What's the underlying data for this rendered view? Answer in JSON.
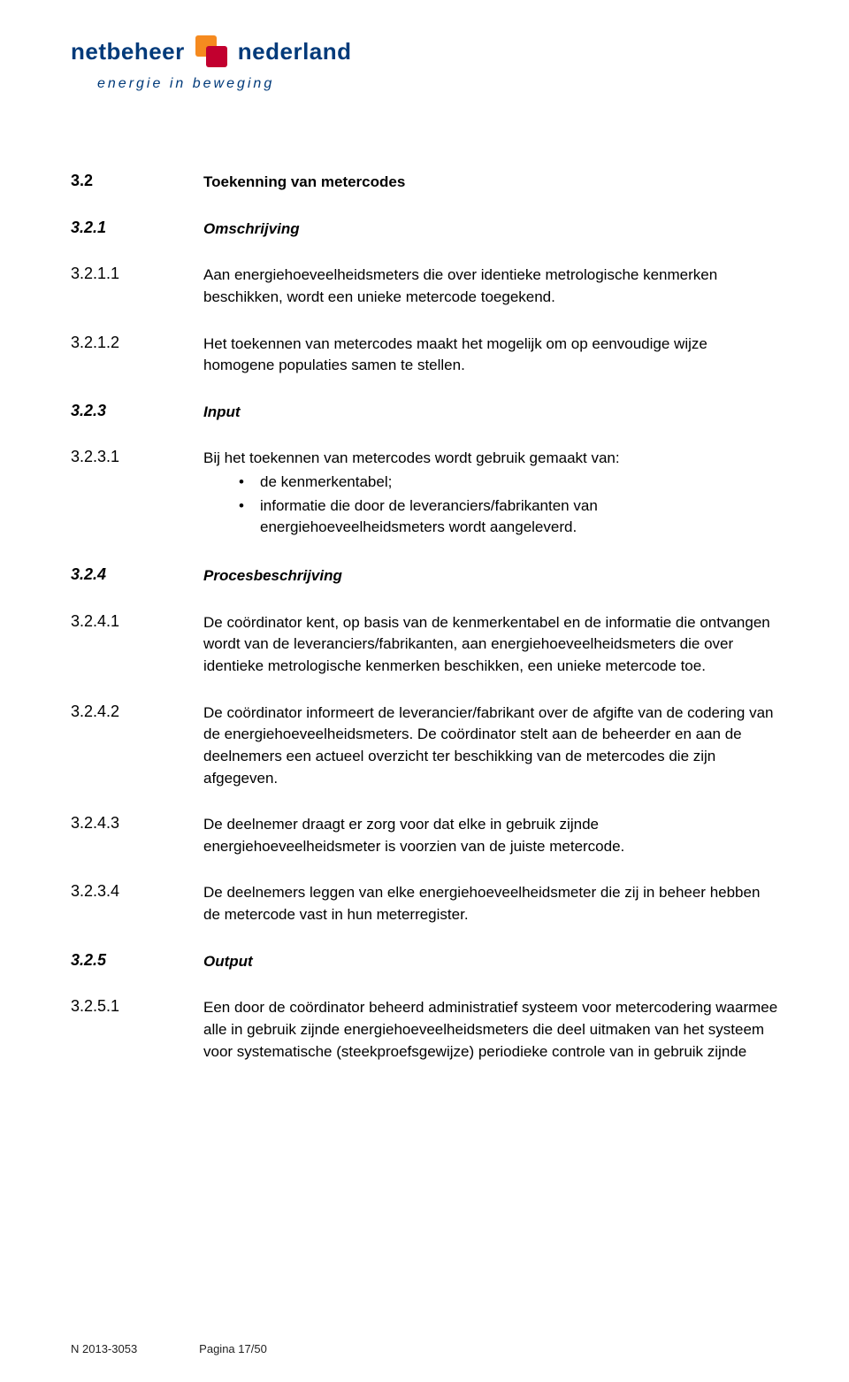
{
  "logo": {
    "word1": "netbeheer",
    "word2": "nederland",
    "tagline": "energie in beweging"
  },
  "sections": [
    {
      "num": "3.2",
      "title": "Toekenning van metercodes",
      "style": "bold"
    },
    {
      "num": "3.2.1",
      "title": "Omschrijving",
      "style": "bolditalic"
    },
    {
      "num": "3.2.1.1",
      "text": "Aan energiehoeveelheidsmeters die over identieke metrologische kenmerken beschikken, wordt een unieke metercode toegekend."
    },
    {
      "num": "3.2.1.2",
      "text": "Het toekennen van metercodes maakt het mogelijk om op eenvoudige wijze homogene populaties samen te stellen."
    },
    {
      "num": "3.2.3",
      "title": "Input",
      "style": "bolditalic"
    },
    {
      "num": "3.2.3.1",
      "text": "Bij het toekennen van metercodes wordt gebruik gemaakt van:",
      "bullets": [
        "de kenmerkentabel;",
        "informatie die door de leveranciers/fabrikanten van energiehoeveelheidsmeters wordt aangeleverd."
      ]
    },
    {
      "num": "3.2.4",
      "title": "Procesbeschrijving",
      "style": "bolditalic"
    },
    {
      "num": "3.2.4.1",
      "text": "De coördinator kent, op basis van de kenmerkentabel en de informatie die ontvangen wordt van de leveranciers/fabrikanten, aan energiehoeveelheidsmeters die over identieke metrologische kenmerken beschikken, een unieke metercode toe."
    },
    {
      "num": "3.2.4.2",
      "text": " De coördinator informeert de leverancier/fabrikant over de afgifte van de codering van de energiehoeveelheidsmeters. De coördinator stelt aan de beheerder en aan de deelnemers een actueel overzicht ter beschikking van de metercodes die zijn afgegeven."
    },
    {
      "num": "3.2.4.3",
      "text": "De deelnemer draagt er zorg voor dat elke in gebruik zijnde energiehoeveelheidsmeter is voorzien van de juiste metercode."
    },
    {
      "num": "3.2.3.4",
      "text": "De deelnemers leggen van elke energiehoeveelheidsmeter die zij in beheer hebben de metercode vast in hun meterregister."
    },
    {
      "num": "3.2.5",
      "title": "Output",
      "style": "bolditalic"
    },
    {
      "num": "3.2.5.1",
      "text": "Een door de coördinator beheerd administratief systeem voor metercodering waarmee alle in gebruik zijnde energiehoeveelheidsmeters die deel uitmaken van het systeem voor systematische (steekproefsgewijze) periodieke controle van in gebruik zijnde"
    }
  ],
  "footer": {
    "ref": "N 2013-3053",
    "page": "Pagina 17/50"
  }
}
